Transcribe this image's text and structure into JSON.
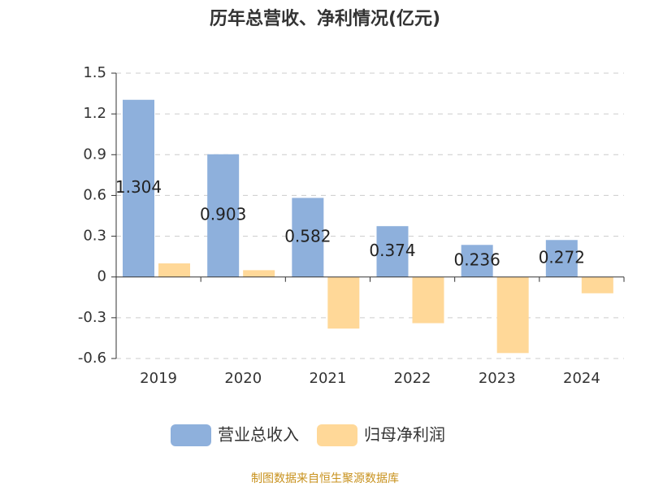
{
  "chart_data": {
    "type": "bar",
    "title": "历年总营收、净利情况(亿元)",
    "categories": [
      "2019",
      "2020",
      "2021",
      "2022",
      "2023",
      "2024"
    ],
    "series": [
      {
        "name": "营业总收入",
        "color": "#8eb0dc",
        "values": [
          1.304,
          0.903,
          0.582,
          0.374,
          0.236,
          0.272
        ],
        "show_labels": true
      },
      {
        "name": "归母净利润",
        "color": "#ffd898",
        "values": [
          0.1,
          0.05,
          -0.38,
          -0.34,
          -0.56,
          -0.12
        ],
        "show_labels": false
      }
    ],
    "ylim": [
      -0.6,
      1.5
    ],
    "yticks": [
      1.5,
      1.2,
      0.9,
      0.6,
      0.3,
      0,
      -0.3,
      -0.6
    ],
    "grid": true,
    "legend": "bottom",
    "source": "制图数据来自恒生聚源数据库"
  }
}
